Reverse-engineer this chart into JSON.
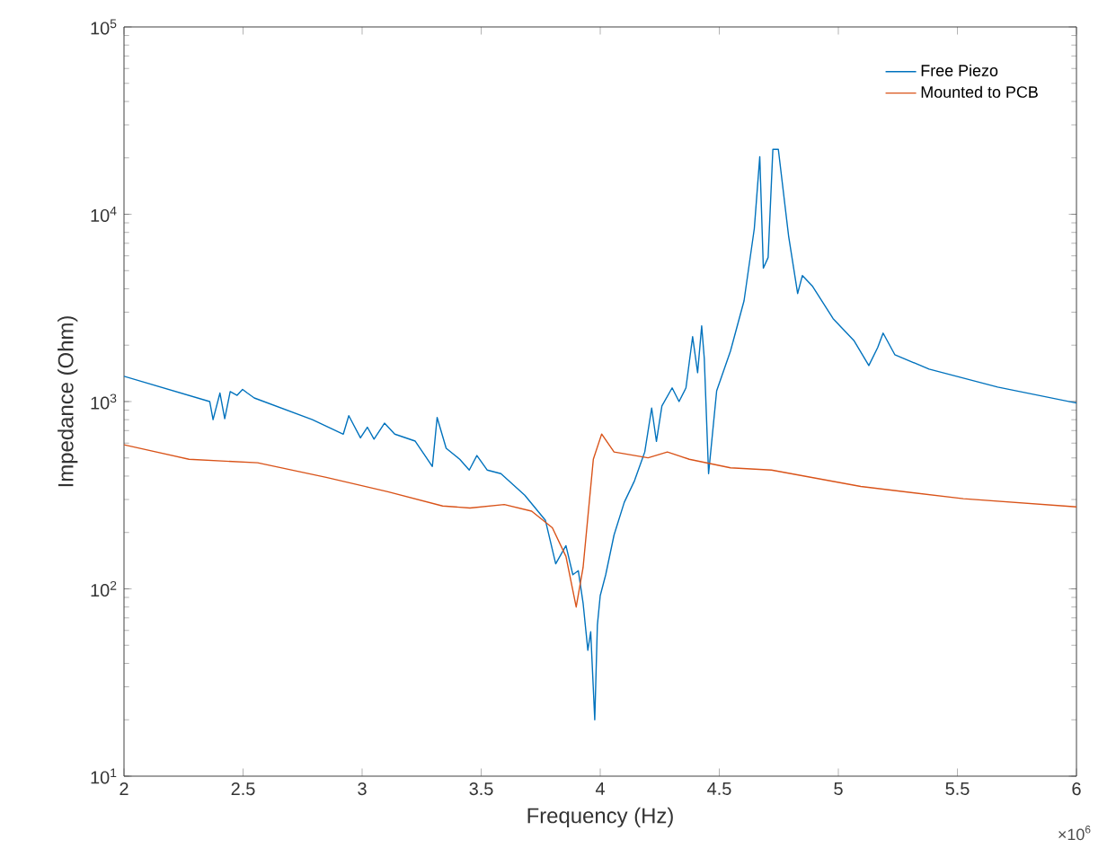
{
  "chart_data": {
    "type": "line",
    "xlabel": "Frequency (Hz)",
    "ylabel": "Impedance (Ohm)",
    "log": "y",
    "legend": "top right",
    "xlim": [
      2,
      6
    ],
    "ylim": [
      10,
      100000
    ],
    "xticks": [
      2,
      2.5,
      3,
      3.5,
      4,
      4.5,
      5,
      5.5,
      6
    ],
    "yticks": [
      {
        "value": 10,
        "label": "10$^{1}$"
      },
      {
        "value": 100,
        "label": "10$^{2}$"
      },
      {
        "value": 1000,
        "label": "10$^{3}$"
      },
      {
        "value": 10000,
        "label": "10$^{4}$"
      },
      {
        "value": 100000,
        "label": "10$^{5}$"
      }
    ],
    "annotations": [
      "×10$^{6}$"
    ],
    "series": [
      {
        "name": "Free Piezo",
        "color": "#0072bd",
        "x": [
          2,
          2.36,
          2.374,
          2.403,
          2.423,
          2.446,
          2.475,
          2.498,
          2.518,
          2.547,
          2.791,
          2.921,
          2.944,
          2.993,
          3.022,
          3.05,
          3.094,
          3.137,
          3.223,
          3.295,
          3.315,
          3.353,
          3.41,
          3.45,
          3.482,
          3.525,
          3.583,
          3.683,
          3.77,
          3.813,
          3.856,
          3.885,
          3.908,
          3.928,
          3.948,
          3.96,
          3.977,
          3.988,
          4,
          4.023,
          4.058,
          4.101,
          4.144,
          4.187,
          4.216,
          4.236,
          4.259,
          4.302,
          4.331,
          4.36,
          4.388,
          4.409,
          4.426,
          4.437,
          4.455,
          4.489,
          4.547,
          4.604,
          4.647,
          4.67,
          4.685,
          4.705,
          4.725,
          4.748,
          4.791,
          4.829,
          4.849,
          4.892,
          4.978,
          5.065,
          5.128,
          5.165,
          5.188,
          5.237,
          5.381,
          5.669,
          6
        ],
        "values": [
          1365,
          1000,
          800,
          1110,
          810,
          1130,
          1080,
          1160,
          1110,
          1045,
          800,
          670,
          840,
          640,
          730,
          630,
          767,
          670,
          615,
          450,
          822,
          563,
          492,
          431,
          515,
          431,
          412,
          316,
          232,
          136,
          170,
          119,
          125,
          84,
          47,
          59,
          20,
          64,
          92,
          119,
          194,
          290,
          378,
          538,
          923,
          613,
          948,
          1183,
          1000,
          1183,
          2220,
          1425,
          2535,
          1700,
          412,
          1142,
          1860,
          3455,
          8380,
          20300,
          5150,
          5875,
          22200,
          22200,
          7670,
          3775,
          4710,
          4120,
          2770,
          2120,
          1557,
          1940,
          2320,
          1780,
          1490,
          1195,
          982
        ]
      },
      {
        "name": "Mounted to PCB",
        "color": "#d95319",
        "x": [
          2,
          2.273,
          2.561,
          2.849,
          3.108,
          3.338,
          3.453,
          3.597,
          3.712,
          3.799,
          3.856,
          3.899,
          3.928,
          3.971,
          4.006,
          4.058,
          4.201,
          4.282,
          4.374,
          4.547,
          4.719,
          5.094,
          5.525,
          6
        ],
        "values": [
          588,
          492,
          471,
          394,
          330,
          277,
          270,
          282,
          260,
          212,
          149,
          80,
          130,
          492,
          671,
          538,
          501,
          538,
          492,
          443,
          431,
          352,
          303,
          274
        ]
      }
    ]
  }
}
